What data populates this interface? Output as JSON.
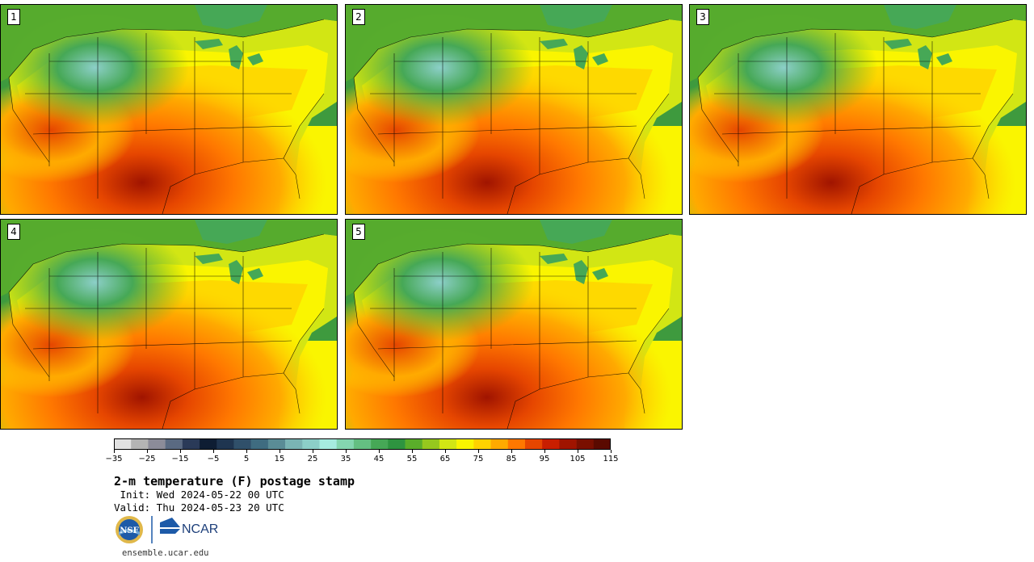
{
  "panels": [
    {
      "label": "1"
    },
    {
      "label": "2"
    },
    {
      "label": "3"
    },
    {
      "label": "4"
    },
    {
      "label": "5"
    }
  ],
  "colorbar": {
    "colors": [
      "#e1e1e1",
      "#b4b4b4",
      "#8c8c99",
      "#5a6a82",
      "#2a3a58",
      "#0e1d33",
      "#1f3550",
      "#30506a",
      "#3f6c80",
      "#5a8c96",
      "#7ab4b4",
      "#8ccfc8",
      "#a6ece0",
      "#84d6b0",
      "#64bf82",
      "#46a856",
      "#2e9440",
      "#5aae2a",
      "#96c81e",
      "#d2e614",
      "#faf500",
      "#ffd200",
      "#ffaa00",
      "#ff7800",
      "#e64600",
      "#c81e00",
      "#a01400",
      "#7a0f00",
      "#5a0a00"
    ],
    "tick_labels": [
      "−35",
      "−25",
      "−15",
      "−5",
      "5",
      "15",
      "25",
      "35",
      "45",
      "55",
      "65",
      "75",
      "85",
      "95",
      "105",
      "115"
    ]
  },
  "title": "2-m temperature (F) postage stamp",
  "init": " Init: Wed 2024-05-22 00 UTC",
  "valid": "Valid: Thu 2024-05-23 20 UTC",
  "logos": {
    "nsf_text": "NSF",
    "ncar_text": "NCAR"
  },
  "site": "ensemble.ucar.edu"
}
